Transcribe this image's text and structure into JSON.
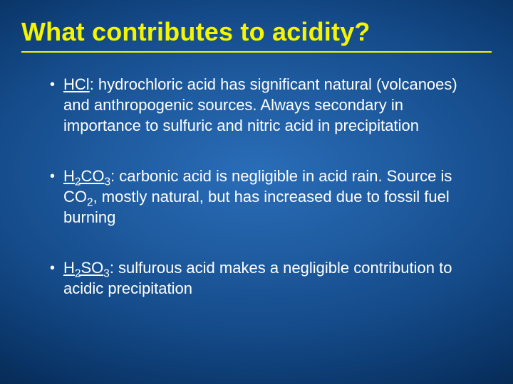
{
  "slide": {
    "title": "What contributes to acidity?",
    "title_color": "#f5f500",
    "background": {
      "type": "radial-gradient",
      "center_color": "#2a6db8",
      "edge_color": "#052850"
    },
    "body_text_color": "#ffffff",
    "title_fontsize": 36,
    "body_fontsize": 22,
    "bullets": [
      {
        "formula_html": "HCl",
        "text": ": hydrochloric acid has significant natural (volcanoes) and anthropogenic sources. Always secondary in importance to sulfuric and nitric acid in precipitation"
      },
      {
        "formula_html": "H<sub>2</sub>CO<sub>3</sub>",
        "text_html": ": carbonic acid is negligible in acid rain. Source is CO<sub>2</sub>, mostly natural, but has increased due to fossil fuel burning"
      },
      {
        "formula_html": "H<sub>2</sub>SO<sub>3</sub>",
        "text": ": sulfurous acid makes a negligible contribution to acidic precipitation"
      }
    ],
    "bullet_marker": "•"
  }
}
